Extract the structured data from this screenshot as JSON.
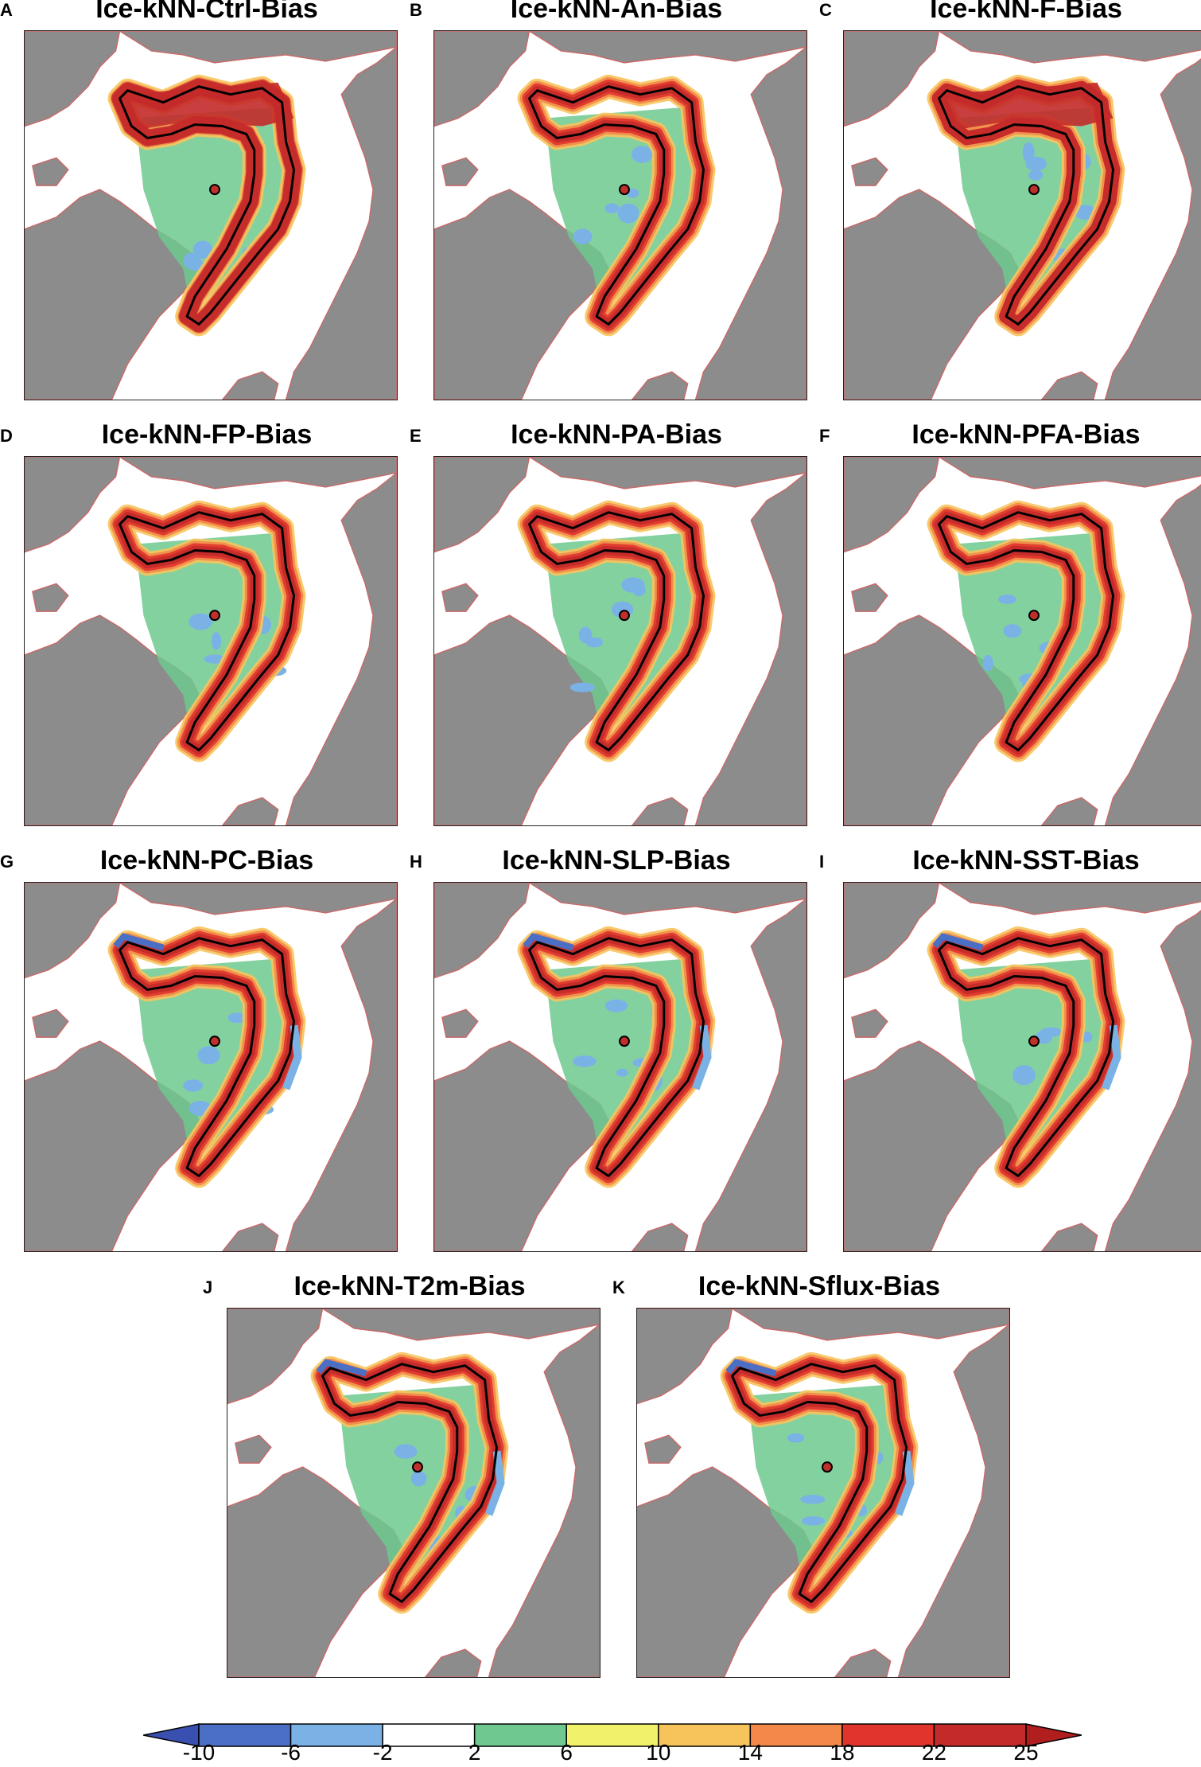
{
  "panels": [
    {
      "letter": "A",
      "title": "Ice-kNN-Ctrl-Bias",
      "variant": 0
    },
    {
      "letter": "B",
      "title": "Ice-kNN-An-Bias",
      "variant": 1
    },
    {
      "letter": "C",
      "title": "Ice-kNN-F-Bias",
      "variant": 2
    },
    {
      "letter": "D",
      "title": "Ice-kNN-FP-Bias",
      "variant": 3
    },
    {
      "letter": "E",
      "title": "Ice-kNN-PA-Bias",
      "variant": 4
    },
    {
      "letter": "F",
      "title": "Ice-kNN-PFA-Bias",
      "variant": 5
    },
    {
      "letter": "G",
      "title": "Ice-kNN-PC-Bias",
      "variant": 6
    },
    {
      "letter": "H",
      "title": "Ice-kNN-SLP-Bias",
      "variant": 7
    },
    {
      "letter": "I",
      "title": "Ice-kNN-SST-Bias",
      "variant": 8
    },
    {
      "letter": "J",
      "title": "Ice-kNN-T2m-Bias",
      "variant": 9
    },
    {
      "letter": "K",
      "title": "Ice-kNN-Sflux-Bias",
      "variant": 10
    }
  ],
  "colorbar": {
    "ticks": [
      "-10",
      "-6",
      "-2",
      "2",
      "6",
      "10",
      "14",
      "18",
      "22",
      "25"
    ],
    "colors": [
      "#3a50b0",
      "#4a6fc4",
      "#7ab2e6",
      "#ffffff",
      "#6fc98f",
      "#f2f26a",
      "#f7c45c",
      "#f2894a",
      "#e0342c",
      "#c32a2a",
      "#b01e1e"
    ]
  },
  "map_colors": {
    "land": "#8c8c8c",
    "land_outline": "#c86a6a",
    "ocean": "#ffffff",
    "contour": "#000000",
    "pole_marker": "#c0302a"
  }
}
